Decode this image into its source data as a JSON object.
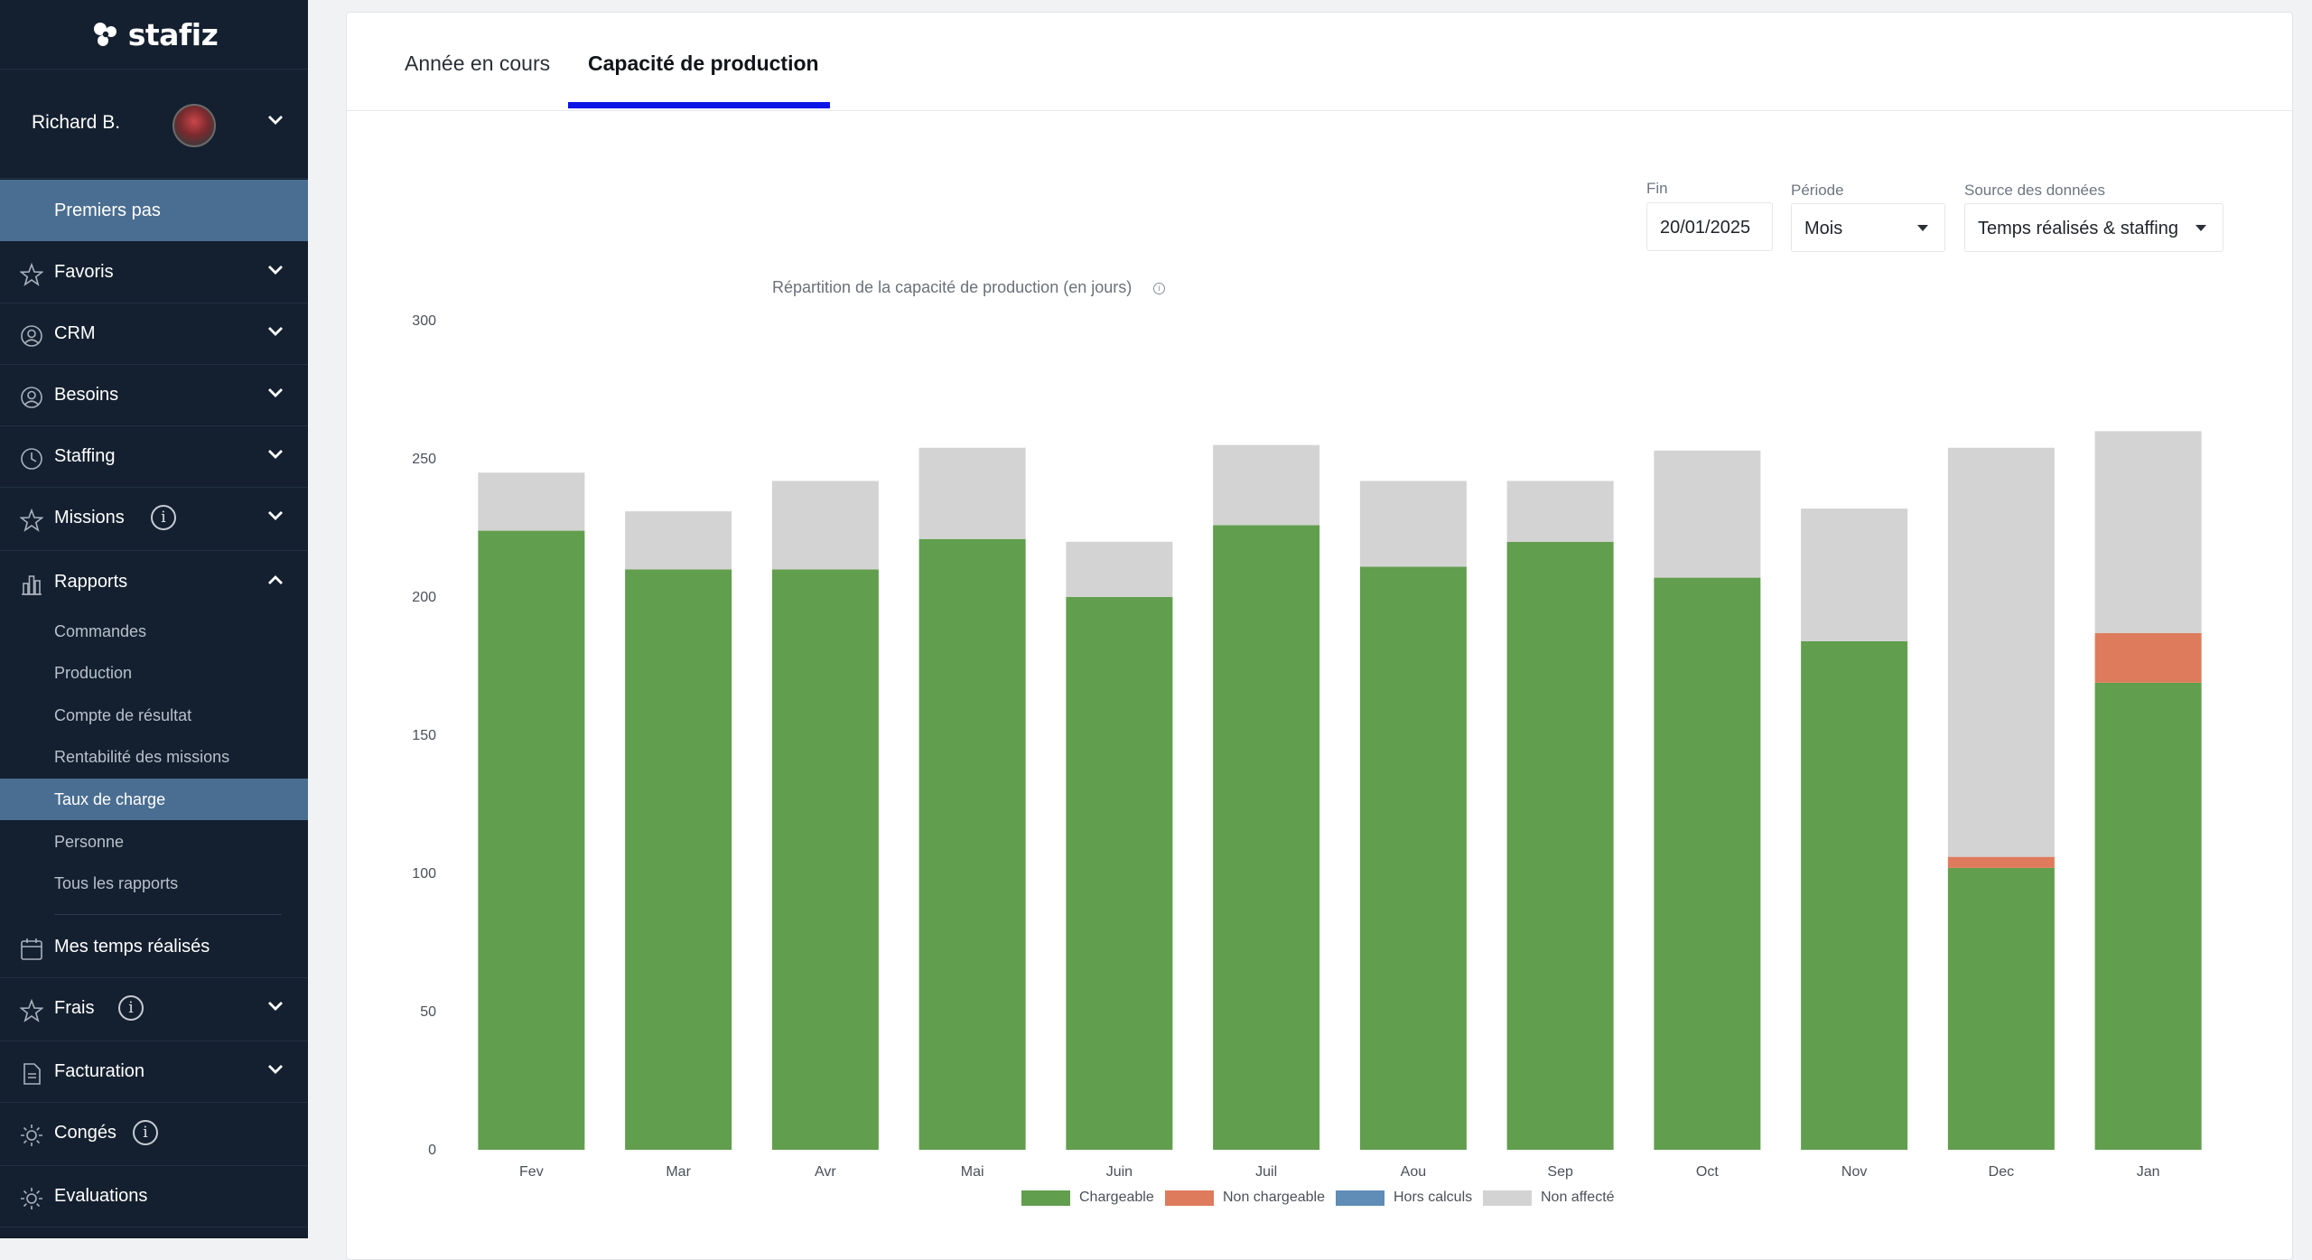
{
  "app": {
    "logo_text": "stafiz"
  },
  "user": {
    "name": "Richard B."
  },
  "nav": {
    "first": "Premiers pas",
    "items": [
      {
        "label": "Favoris",
        "icon": "star-icon"
      },
      {
        "label": "CRM",
        "icon": "user-circle-icon"
      },
      {
        "label": "Besoins",
        "icon": "user-circle-icon"
      },
      {
        "label": "Staffing",
        "icon": "clock-icon"
      },
      {
        "label": "Missions",
        "icon": "star-icon",
        "info": "i"
      },
      {
        "label": "Rapports",
        "icon": "bar-chart-icon"
      },
      {
        "label": "Mes temps réalisés",
        "icon": "calendar-icon"
      },
      {
        "label": "Frais",
        "icon": "star-icon",
        "info": "i"
      },
      {
        "label": "Facturation",
        "icon": "document-icon"
      },
      {
        "label": "Congés",
        "icon": "sun-icon",
        "info": "i"
      },
      {
        "label": "Evaluations",
        "icon": "sun-icon"
      }
    ],
    "rapports_sub": [
      "Commandes",
      "Production",
      "Compte de résultat",
      "Rentabilité des missions",
      "Taux de charge",
      "Personne",
      "Tous les rapports"
    ]
  },
  "tabs": [
    {
      "label": "Année en cours"
    },
    {
      "label": "Capacité de production"
    }
  ],
  "filters": {
    "fin": {
      "label": "Fin",
      "value": "20/01/2025"
    },
    "periode": {
      "label": "Période",
      "value": "Mois"
    },
    "source": {
      "label": "Source des données",
      "value": "Temps réalisés & staffing"
    }
  },
  "colors": {
    "chargeable": "#619e4d",
    "non_chargeable": "#dd7b5c",
    "hors_calculs": "#5f8db7",
    "non_affecte": "#d3d3d3",
    "tab_accent": "#0b16e6",
    "sidebar_bg": "#14202f",
    "sidebar_active": "#4a6e91"
  },
  "chart_data": {
    "type": "bar",
    "stacked": true,
    "title": "Répartition de la capacité de production (en jours)",
    "categories": [
      "Fev",
      "Mar",
      "Avr",
      "Mai",
      "Juin",
      "Juil",
      "Aou",
      "Sep",
      "Oct",
      "Nov",
      "Dec",
      "Jan"
    ],
    "ylim": [
      0,
      300
    ],
    "yticks": [
      0,
      50,
      100,
      150,
      200,
      250,
      300
    ],
    "grid": false,
    "legend_position": "bottom",
    "series": [
      {
        "name": "Chargeable",
        "color": "#619e4d",
        "values": [
          224,
          210,
          210,
          221,
          200,
          226,
          211,
          220,
          207,
          184,
          102,
          169
        ]
      },
      {
        "name": "Non chargeable",
        "color": "#dd7b5c",
        "values": [
          0,
          0,
          0,
          0,
          0,
          0,
          0,
          0,
          0,
          0,
          4,
          18
        ]
      },
      {
        "name": "Hors calculs",
        "color": "#5f8db7",
        "values": [
          0,
          0,
          0,
          0,
          0,
          0,
          0,
          0,
          0,
          0,
          0,
          0
        ]
      },
      {
        "name": "Non affecté",
        "color": "#d3d3d3",
        "values": [
          21,
          21,
          32,
          33,
          20,
          29,
          31,
          22,
          46,
          48,
          148,
          73
        ]
      }
    ]
  }
}
